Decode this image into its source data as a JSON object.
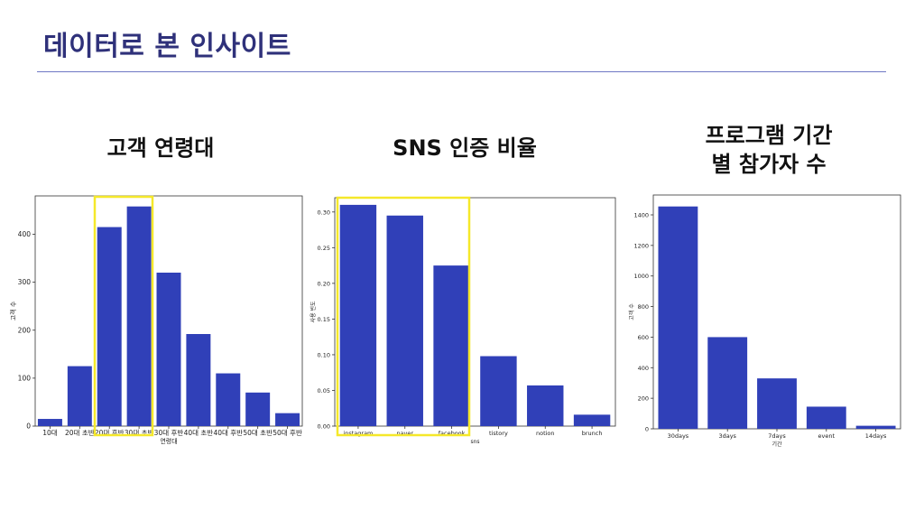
{
  "slide": {
    "title": "데이터로 본 인사이트"
  },
  "headings": {
    "age": [
      "고객 연령대"
    ],
    "sns": [
      "SNS 인증 비율"
    ],
    "program": [
      "프로그램 기간",
      "별 참가자 수"
    ]
  },
  "colors": {
    "bar": "#3040b8",
    "highlight": "#f5e82a",
    "title": "#2f317a",
    "rule": "#6f78c4"
  },
  "chart_data": [
    {
      "id": "age",
      "type": "bar",
      "title": "고객 연령대",
      "categories": [
        "10대",
        "20대 초반",
        "20대 후반",
        "30대 초반",
        "30대 후반",
        "40대 초반",
        "40대 후반",
        "50대 초반",
        "50대 후반"
      ],
      "values": [
        15,
        125,
        415,
        458,
        320,
        192,
        110,
        70,
        27
      ],
      "xlabel": "연령대",
      "ylabel": "고객 수",
      "ylim": [
        0,
        480
      ],
      "yticks": [
        0,
        100,
        200,
        300,
        400
      ],
      "highlight": [
        2,
        3
      ]
    },
    {
      "id": "sns",
      "type": "bar",
      "title": "SNS 인증 비율",
      "categories": [
        "instagram",
        "naver",
        "facebook",
        "tistory",
        "notion",
        "brunch"
      ],
      "values": [
        0.31,
        0.295,
        0.225,
        0.098,
        0.057,
        0.016
      ],
      "xlabel": "sns",
      "ylabel": "사용 빈도",
      "ylim": [
        0,
        0.32
      ],
      "yticks": [
        0.0,
        0.05,
        0.1,
        0.15,
        0.2,
        0.25,
        0.3
      ],
      "ytick_labels": [
        "0.00",
        "0.05",
        "0.10",
        "0.15",
        "0.20",
        "0.25",
        "0.30"
      ],
      "highlight": [
        0,
        1,
        2
      ]
    },
    {
      "id": "program",
      "type": "bar",
      "title": "프로그램 기간 별 참가자 수",
      "categories": [
        "30days",
        "3days",
        "7days",
        "event",
        "14days"
      ],
      "values": [
        1455,
        600,
        330,
        145,
        20
      ],
      "xlabel": "기간",
      "ylabel": "고객 수",
      "ylim": [
        0,
        1530
      ],
      "yticks": [
        0,
        200,
        400,
        600,
        800,
        1000,
        1200,
        1400
      ],
      "highlight": []
    }
  ]
}
